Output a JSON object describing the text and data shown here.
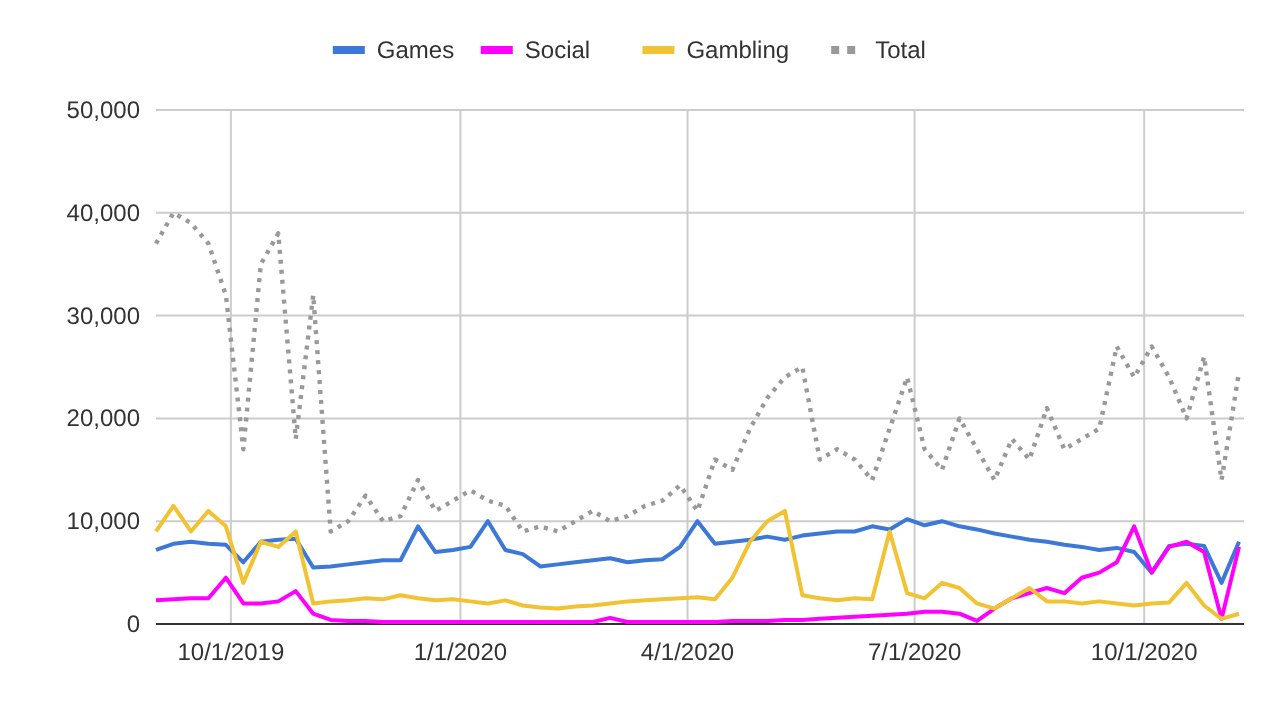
{
  "chart_data": {
    "type": "line",
    "x": [
      "2019-09-01",
      "2019-09-08",
      "2019-09-15",
      "2019-09-22",
      "2019-09-29",
      "2019-10-06",
      "2019-10-13",
      "2019-10-20",
      "2019-10-27",
      "2019-11-03",
      "2019-11-10",
      "2019-11-17",
      "2019-11-24",
      "2019-12-01",
      "2019-12-08",
      "2019-12-15",
      "2019-12-22",
      "2019-12-29",
      "2020-01-05",
      "2020-01-12",
      "2020-01-19",
      "2020-01-26",
      "2020-02-02",
      "2020-02-09",
      "2020-02-16",
      "2020-02-23",
      "2020-03-01",
      "2020-03-08",
      "2020-03-15",
      "2020-03-22",
      "2020-03-29",
      "2020-04-05",
      "2020-04-12",
      "2020-04-19",
      "2020-04-26",
      "2020-05-03",
      "2020-05-10",
      "2020-05-17",
      "2020-05-24",
      "2020-05-31",
      "2020-06-07",
      "2020-06-14",
      "2020-06-21",
      "2020-06-28",
      "2020-07-05",
      "2020-07-12",
      "2020-07-19",
      "2020-07-26",
      "2020-08-02",
      "2020-08-09",
      "2020-08-16",
      "2020-08-23",
      "2020-08-30",
      "2020-09-06",
      "2020-09-13",
      "2020-09-20",
      "2020-09-27",
      "2020-10-04",
      "2020-10-11",
      "2020-10-18",
      "2020-10-25",
      "2020-11-01",
      "2020-11-08"
    ],
    "series": [
      {
        "name": "Games",
        "color": "#3c78d8",
        "values": [
          7200,
          7800,
          8000,
          7800,
          7700,
          6000,
          8000,
          8200,
          8300,
          5500,
          5600,
          5800,
          6000,
          6200,
          6200,
          9500,
          7000,
          7200,
          7500,
          10000,
          7200,
          6800,
          5600,
          5800,
          6000,
          6200,
          6400,
          6000,
          6200,
          6300,
          7500,
          10000,
          7800,
          8000,
          8200,
          8500,
          8200,
          8600,
          8800,
          9000,
          9000,
          9500,
          9200,
          10200,
          9600,
          10000,
          9500,
          9200,
          8800,
          8500,
          8200,
          8000,
          7700,
          7500,
          7200,
          7400,
          7000,
          5000,
          7600,
          7800,
          7600,
          4000,
          8000
        ]
      },
      {
        "name": "Social",
        "color": "#ff00ff",
        "values": [
          2300,
          2400,
          2500,
          2500,
          4500,
          2000,
          2000,
          2200,
          3200,
          1000,
          400,
          300,
          300,
          200,
          200,
          200,
          200,
          200,
          200,
          200,
          200,
          200,
          200,
          200,
          200,
          200,
          600,
          200,
          200,
          200,
          200,
          200,
          200,
          300,
          300,
          300,
          400,
          400,
          500,
          600,
          700,
          800,
          900,
          1000,
          1200,
          1200,
          1000,
          300,
          1500,
          2500,
          3000,
          3500,
          3000,
          4500,
          5000,
          6000,
          9500,
          5000,
          7500,
          8000,
          7000,
          500,
          7500
        ]
      },
      {
        "name": "Gambling",
        "color": "#f1c232",
        "values": [
          9000,
          11500,
          9000,
          11000,
          9500,
          4000,
          8000,
          7500,
          9000,
          2000,
          2200,
          2300,
          2500,
          2400,
          2800,
          2500,
          2300,
          2400,
          2200,
          2000,
          2300,
          1800,
          1600,
          1500,
          1700,
          1800,
          2000,
          2200,
          2300,
          2400,
          2500,
          2600,
          2400,
          4500,
          8000,
          10000,
          11000,
          2800,
          2500,
          2300,
          2500,
          2400,
          9000,
          3000,
          2500,
          4000,
          3500,
          2000,
          1500,
          2500,
          3500,
          2200,
          2200,
          2000,
          2200,
          2000,
          1800,
          2000,
          2100,
          4000,
          1800,
          500,
          1000
        ]
      },
      {
        "name": "Total",
        "color": "#999999",
        "line_style": "dotted",
        "values": [
          37000,
          40000,
          39000,
          37000,
          32000,
          17000,
          35000,
          38000,
          18000,
          32000,
          9000,
          10000,
          12500,
          10000,
          10500,
          14000,
          11000,
          12000,
          13000,
          12000,
          11500,
          9000,
          9500,
          9000,
          10000,
          11000,
          10000,
          10500,
          11500,
          12000,
          13500,
          11000,
          16000,
          15000,
          19000,
          22000,
          24000,
          25000,
          16000,
          17000,
          16000,
          14000,
          19000,
          24000,
          17000,
          15000,
          20000,
          17000,
          14000,
          18000,
          16000,
          21000,
          17000,
          18000,
          19000,
          27000,
          24000,
          27000,
          24000,
          20000,
          26000,
          14000,
          24500
        ]
      }
    ],
    "xlim": [
      "2019-09-01",
      "2020-11-10"
    ],
    "xticks": [
      {
        "value": "2019-10-01",
        "label": "10/1/2019"
      },
      {
        "value": "2020-01-01",
        "label": "1/1/2020"
      },
      {
        "value": "2020-04-01",
        "label": "4/1/2020"
      },
      {
        "value": "2020-07-01",
        "label": "7/1/2020"
      },
      {
        "value": "2020-10-01",
        "label": "10/1/2020"
      }
    ],
    "ylim": [
      0,
      50000
    ],
    "yticks": [
      0,
      {
        "value": 10000,
        "label": "10,000"
      },
      {
        "value": 20000,
        "label": "20,000"
      },
      {
        "value": 30000,
        "label": "30,000"
      },
      {
        "value": 40000,
        "label": "40,000"
      },
      {
        "value": 50000,
        "label": "50,000"
      }
    ],
    "grid": true,
    "legend": "top"
  }
}
